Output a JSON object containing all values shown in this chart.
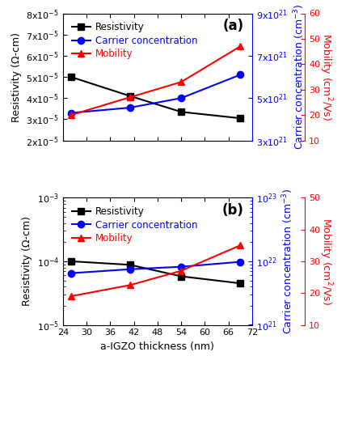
{
  "x": [
    26,
    41,
    54,
    69
  ],
  "panel_a": {
    "resistivity": [
      5e-05,
      4.1e-05,
      3.35e-05,
      3.05e-05
    ],
    "carrier_conc": [
      4.3e+21,
      4.55e+21,
      5e+21,
      6.1e+21
    ],
    "mobility": [
      20.0,
      27.0,
      33.0,
      47.0
    ],
    "res_ylim": [
      2e-05,
      8e-05
    ],
    "res_yticks": [
      2e-05,
      3e-05,
      4e-05,
      5e-05,
      6e-05,
      7e-05,
      8e-05
    ],
    "res_yticklabels": [
      "2x10$^{-5}$",
      "3x10$^{-5}$",
      "4x10$^{-5}$",
      "5x10$^{-5}$",
      "6x10$^{-5}$",
      "7x10$^{-5}$",
      "8x10$^{-5}$"
    ],
    "cc_ylim": [
      3e+21,
      9e+21
    ],
    "cc_yticks": [
      3e+21,
      5e+21,
      7e+21,
      9e+21
    ],
    "cc_yticklabels": [
      "3x10$^{21}$",
      "5x10$^{21}$",
      "7x10$^{21}$",
      "9x10$^{21}$"
    ],
    "mob_ylim": [
      10,
      60
    ],
    "mob_yticks": [
      10,
      20,
      30,
      40,
      50,
      60
    ],
    "mob_yticklabels": [
      "10",
      "20",
      "30",
      "40",
      "50",
      "60"
    ],
    "label": "(a)"
  },
  "panel_b": {
    "resistivity": [
      0.0001,
      8.8e-05,
      5.8e-05,
      4.5e-05
    ],
    "carrier_conc": [
      6.5e+21,
      7.5e+21,
      8.2e+21,
      9.8e+21
    ],
    "mobility": [
      19.0,
      22.5,
      27.0,
      35.0
    ],
    "res_ylim": [
      1e-05,
      0.001
    ],
    "res_yticks": [
      1e-05,
      0.0001,
      0.001
    ],
    "cc_ylim": [
      1e+21,
      1e+23
    ],
    "cc_yticks": [
      1e+21,
      1e+22,
      1e+23
    ],
    "mob_ylim": [
      10,
      50
    ],
    "mob_yticks": [
      10,
      20,
      30,
      40,
      50
    ],
    "mob_yticklabels": [
      "10",
      "20",
      "30",
      "40",
      "50"
    ],
    "label": "(b)"
  },
  "xlabel": "a-IGZO thickness (nm)",
  "ylabel_left": "Resistivity (Ω-cm)",
  "ylabel_right_cc": "Carrier concentration (cm$^{-3}$)",
  "ylabel_right_mob": "Mobility (cm$^{2}$/Vs)",
  "legend_resistivity": "Resistivity",
  "legend_carrier": "Carrier concentration",
  "legend_mobility": "Mobility",
  "xlim": [
    24,
    72
  ],
  "xticks": [
    24,
    30,
    36,
    42,
    48,
    54,
    60,
    66,
    72
  ],
  "color_res": "#000000",
  "color_cc": "#0000ff",
  "color_mob": "#ff0000",
  "marker_res": "s",
  "marker_cc": "o",
  "marker_mob": "^",
  "linewidth": 1.5,
  "markersize": 6,
  "fontsize_tick": 8,
  "fontsize_label": 9,
  "fontsize_legend": 8.5,
  "fontsize_panel": 12
}
